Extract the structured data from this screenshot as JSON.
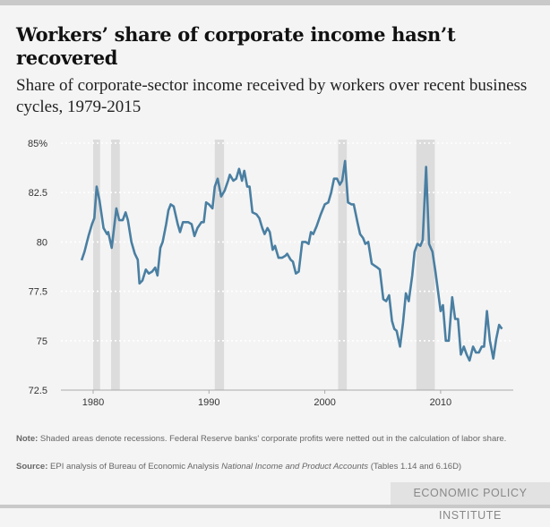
{
  "title": "Workers’ share of corporate income hasn’t recovered",
  "subtitle": "Share of corporate-sector income received by workers over recent business cycles, 1979-2015",
  "note_label": "Note:",
  "note": "Shaded areas denote recessions. Federal Reserve banks' corporate profits were netted out in the calculation of labor share.",
  "source_label": "Source:",
  "source_pre": "EPI analysis of Bureau of Economic Analysis ",
  "source_italic": "National Income and Product Accounts",
  "source_post": " (Tables 1.14 and 6.16D)",
  "brand": "ECONOMIC POLICY INSTITUTE",
  "colors": {
    "line": "#4a7fa2",
    "recession": "#dcdcdc",
    "background": "#f4f4f4"
  },
  "chart_data": {
    "type": "line",
    "xlim": [
      1977.2,
      2016.3
    ],
    "ylim": [
      72.5,
      85
    ],
    "yticks": [
      {
        "v": 85,
        "label": "85%"
      },
      {
        "v": 82.5,
        "label": "82.5"
      },
      {
        "v": 80,
        "label": "80"
      },
      {
        "v": 77.5,
        "label": "77.5"
      },
      {
        "v": 75,
        "label": "75"
      },
      {
        "v": 72.5,
        "label": "72.5"
      }
    ],
    "xticks": [
      {
        "v": 1980,
        "label": "1980"
      },
      {
        "v": 1990,
        "label": "1990"
      },
      {
        "v": 2000,
        "label": "2000"
      },
      {
        "v": 2010,
        "label": "2010"
      }
    ],
    "grid": true,
    "recessions": [
      [
        1980.0,
        1980.6
      ],
      [
        1981.55,
        1982.3
      ],
      [
        1990.5,
        1991.3
      ],
      [
        2001.15,
        2001.9
      ],
      [
        2007.9,
        2009.5
      ]
    ],
    "x": [
      1979.0,
      1979.25,
      1979.6,
      1979.9,
      1980.1,
      1980.3,
      1980.55,
      1980.9,
      1981.2,
      1981.3,
      1981.6,
      1981.8,
      1982.0,
      1982.25,
      1982.55,
      1982.8,
      1983.0,
      1983.3,
      1983.6,
      1983.85,
      1984.0,
      1984.25,
      1984.55,
      1984.8,
      1985.1,
      1985.35,
      1985.55,
      1985.8,
      1986.0,
      1986.3,
      1986.5,
      1986.7,
      1986.95,
      1987.3,
      1987.5,
      1987.75,
      1988.2,
      1988.5,
      1988.75,
      1989.0,
      1989.35,
      1989.55,
      1989.75,
      1990.0,
      1990.3,
      1990.5,
      1990.75,
      1991.05,
      1991.35,
      1991.65,
      1991.8,
      1992.1,
      1992.35,
      1992.6,
      1992.85,
      1993.05,
      1993.3,
      1993.5,
      1993.75,
      1994.1,
      1994.35,
      1994.6,
      1994.8,
      1995.05,
      1995.25,
      1995.5,
      1995.7,
      1996.0,
      1996.3,
      1996.6,
      1996.75,
      1997.05,
      1997.25,
      1997.5,
      1997.75,
      1998.05,
      1998.35,
      1998.6,
      1998.8,
      1999.0,
      1999.3,
      1999.65,
      2000.0,
      2000.3,
      2000.55,
      2000.8,
      2001.05,
      2001.3,
      2001.5,
      2001.75,
      2002.0,
      2002.3,
      2002.5,
      2002.85,
      2003.05,
      2003.3,
      2003.5,
      2003.75,
      2004.05,
      2004.3,
      2004.55,
      2004.75,
      2005.05,
      2005.3,
      2005.55,
      2005.8,
      2006.0,
      2006.2,
      2006.5,
      2006.75,
      2007.0,
      2007.25,
      2007.55,
      2007.75,
      2008.0,
      2008.25,
      2008.45,
      2008.75,
      2009.0,
      2009.3,
      2009.55,
      2009.8,
      2010.0,
      2010.2,
      2010.45,
      2010.7,
      2011.0,
      2011.25,
      2011.5,
      2011.75,
      2012.0,
      2012.25,
      2012.5,
      2012.8,
      2013.05,
      2013.3,
      2013.55,
      2013.75,
      2014.0,
      2014.25,
      2014.55,
      2014.8,
      2015.05,
      2015.3
    ],
    "y": [
      79.07,
      79.5,
      80.3,
      80.9,
      81.2,
      82.8,
      82.1,
      80.7,
      80.4,
      80.5,
      79.7,
      80.7,
      81.7,
      81.1,
      81.1,
      81.5,
      81.1,
      80.0,
      79.4,
      79.1,
      77.9,
      78.05,
      78.6,
      78.4,
      78.5,
      78.7,
      78.3,
      79.7,
      80.0,
      80.9,
      81.6,
      81.9,
      81.8,
      80.9,
      80.5,
      81.0,
      81.0,
      80.9,
      80.3,
      80.7,
      81.0,
      81.0,
      82.0,
      81.9,
      81.7,
      82.8,
      83.2,
      82.3,
      82.6,
      83.1,
      83.4,
      83.1,
      83.2,
      83.7,
      83.1,
      83.6,
      82.8,
      82.8,
      81.5,
      81.4,
      81.2,
      80.7,
      80.4,
      80.7,
      80.5,
      79.6,
      79.8,
      79.2,
      79.2,
      79.3,
      79.4,
      79.1,
      79.0,
      78.4,
      78.5,
      80.0,
      80.0,
      79.9,
      80.5,
      80.4,
      80.8,
      81.4,
      81.9,
      82.0,
      82.5,
      83.2,
      83.2,
      82.9,
      83.1,
      84.1,
      82.0,
      81.9,
      81.9,
      80.9,
      80.4,
      80.2,
      79.9,
      80.0,
      78.9,
      78.8,
      78.7,
      78.6,
      77.1,
      77.0,
      77.3,
      76.0,
      75.6,
      75.5,
      74.7,
      75.9,
      77.4,
      77.0,
      78.3,
      79.5,
      79.9,
      79.8,
      80.1,
      83.8,
      79.9,
      79.5,
      78.5,
      77.4,
      76.5,
      76.8,
      75.0,
      75.0,
      77.2,
      76.1,
      76.1,
      74.3,
      74.7,
      74.3,
      74.0,
      74.7,
      74.4,
      74.4,
      74.7,
      74.7,
      76.5,
      75.0,
      74.1,
      75.1,
      75.8,
      75.6
    ]
  }
}
